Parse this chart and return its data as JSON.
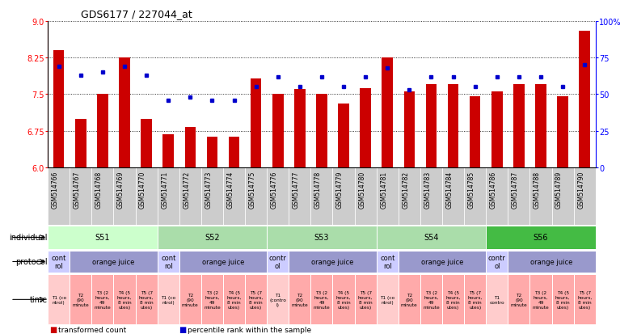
{
  "title": "GDS6177 / 227044_at",
  "samples": [
    "GSM514766",
    "GSM514767",
    "GSM514768",
    "GSM514769",
    "GSM514770",
    "GSM514771",
    "GSM514772",
    "GSM514773",
    "GSM514774",
    "GSM514775",
    "GSM514776",
    "GSM514777",
    "GSM514778",
    "GSM514779",
    "GSM514780",
    "GSM514781",
    "GSM514782",
    "GSM514783",
    "GSM514784",
    "GSM514785",
    "GSM514786",
    "GSM514787",
    "GSM514788",
    "GSM514789",
    "GSM514790"
  ],
  "transformed_count": [
    8.4,
    7.0,
    7.5,
    8.25,
    7.0,
    6.68,
    6.82,
    6.62,
    6.62,
    7.82,
    7.5,
    7.6,
    7.5,
    7.3,
    7.62,
    8.25,
    7.55,
    7.7,
    7.7,
    7.45,
    7.55,
    7.7,
    7.7,
    7.45,
    8.8
  ],
  "percentile_rank": [
    69,
    63,
    65,
    69,
    63,
    46,
    48,
    46,
    46,
    55,
    62,
    55,
    62,
    55,
    62,
    68,
    53,
    62,
    62,
    55,
    62,
    62,
    62,
    55,
    70
  ],
  "ylim_left": [
    6.0,
    9.0
  ],
  "yticks_left": [
    6.0,
    6.75,
    7.5,
    8.25,
    9.0
  ],
  "ylim_right": [
    0,
    100
  ],
  "yticks_right": [
    0,
    25,
    50,
    75,
    100
  ],
  "bar_color": "#cc0000",
  "dot_color": "#0000cc",
  "individual_groups": [
    {
      "label": "S51",
      "start": 0,
      "end": 4,
      "color": "#ccffcc"
    },
    {
      "label": "S52",
      "start": 5,
      "end": 9,
      "color": "#aaddaa"
    },
    {
      "label": "S53",
      "start": 10,
      "end": 14,
      "color": "#aaddaa"
    },
    {
      "label": "S54",
      "start": 15,
      "end": 19,
      "color": "#aaddaa"
    },
    {
      "label": "S56",
      "start": 20,
      "end": 24,
      "color": "#44bb44"
    }
  ],
  "protocol_groups": [
    {
      "label": "cont\nrol",
      "start": 0,
      "end": 0,
      "color": "#ccccff"
    },
    {
      "label": "orange juice",
      "start": 1,
      "end": 4,
      "color": "#9999cc"
    },
    {
      "label": "cont\nrol",
      "start": 5,
      "end": 5,
      "color": "#ccccff"
    },
    {
      "label": "orange juice",
      "start": 6,
      "end": 9,
      "color": "#9999cc"
    },
    {
      "label": "contr\nol",
      "start": 10,
      "end": 10,
      "color": "#ccccff"
    },
    {
      "label": "orange juice",
      "start": 11,
      "end": 14,
      "color": "#9999cc"
    },
    {
      "label": "cont\nrol",
      "start": 15,
      "end": 15,
      "color": "#ccccff"
    },
    {
      "label": "orange juice",
      "start": 16,
      "end": 19,
      "color": "#9999cc"
    },
    {
      "label": "contr\nol",
      "start": 20,
      "end": 20,
      "color": "#ccccff"
    },
    {
      "label": "orange juice",
      "start": 21,
      "end": 24,
      "color": "#9999cc"
    }
  ],
  "time_groups": [
    {
      "label": "T1 (co\nntrol)",
      "start": 0,
      "end": 0,
      "color": "#ffcccc"
    },
    {
      "label": "T2\n(90\nminute",
      "start": 1,
      "end": 1,
      "color": "#ffaaaa"
    },
    {
      "label": "T3 (2\nhours,\n49\nminute",
      "start": 2,
      "end": 2,
      "color": "#ffaaaa"
    },
    {
      "label": "T4 (5\nhours,\n8 min\nutes)",
      "start": 3,
      "end": 3,
      "color": "#ffaaaa"
    },
    {
      "label": "T5 (7\nhours,\n8 min\nutes)",
      "start": 4,
      "end": 4,
      "color": "#ffaaaa"
    },
    {
      "label": "T1 (co\nntrol)",
      "start": 5,
      "end": 5,
      "color": "#ffcccc"
    },
    {
      "label": "T2\n(90\nminute",
      "start": 6,
      "end": 6,
      "color": "#ffaaaa"
    },
    {
      "label": "T3 (2\nhours,\n49\nminute",
      "start": 7,
      "end": 7,
      "color": "#ffaaaa"
    },
    {
      "label": "T4 (5\nhours,\n8 min\nutes)",
      "start": 8,
      "end": 8,
      "color": "#ffaaaa"
    },
    {
      "label": "T5 (7\nhours,\n8 min\nutes)",
      "start": 9,
      "end": 9,
      "color": "#ffaaaa"
    },
    {
      "label": "T1\n(contro\nl)",
      "start": 10,
      "end": 10,
      "color": "#ffcccc"
    },
    {
      "label": "T2\n(90\nminute",
      "start": 11,
      "end": 11,
      "color": "#ffaaaa"
    },
    {
      "label": "T3 (2\nhours,\n49\nminute",
      "start": 12,
      "end": 12,
      "color": "#ffaaaa"
    },
    {
      "label": "T4 (5\nhours,\n8 min\nutes)",
      "start": 13,
      "end": 13,
      "color": "#ffaaaa"
    },
    {
      "label": "T5 (7\nhours,\n8 min\nutes)",
      "start": 14,
      "end": 14,
      "color": "#ffaaaa"
    },
    {
      "label": "T1 (co\nntrol)",
      "start": 15,
      "end": 15,
      "color": "#ffcccc"
    },
    {
      "label": "T2\n(90\nminute",
      "start": 16,
      "end": 16,
      "color": "#ffaaaa"
    },
    {
      "label": "T3 (2\nhours,\n49\nminute",
      "start": 17,
      "end": 17,
      "color": "#ffaaaa"
    },
    {
      "label": "T4 (5\nhours,\n8 min\nutes)",
      "start": 18,
      "end": 18,
      "color": "#ffaaaa"
    },
    {
      "label": "T5 (7\nhours,\n8 min\nutes)",
      "start": 19,
      "end": 19,
      "color": "#ffaaaa"
    },
    {
      "label": "T1\ncontro",
      "start": 20,
      "end": 20,
      "color": "#ffcccc"
    },
    {
      "label": "T2\n(90\nminute",
      "start": 21,
      "end": 21,
      "color": "#ffaaaa"
    },
    {
      "label": "T3 (2\nhours,\n49\nminute",
      "start": 22,
      "end": 22,
      "color": "#ffaaaa"
    },
    {
      "label": "T4 (5\nhours,\n8 min\nutes)",
      "start": 23,
      "end": 23,
      "color": "#ffaaaa"
    },
    {
      "label": "T5 (7\nhours,\n8 min\nutes)",
      "start": 24,
      "end": 24,
      "color": "#ffaaaa"
    }
  ],
  "row_labels": [
    "individual",
    "protocol",
    "time"
  ],
  "legend_items": [
    {
      "color": "#cc0000",
      "label": "transformed count"
    },
    {
      "color": "#0000cc",
      "label": "percentile rank within the sample"
    }
  ],
  "tick_bg_color": "#cccccc"
}
